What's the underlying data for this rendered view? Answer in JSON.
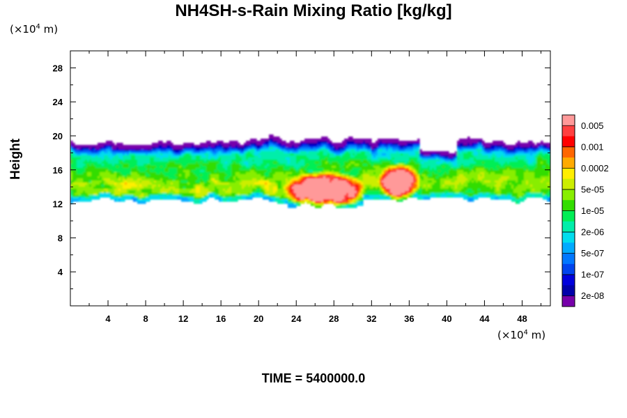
{
  "chart_data": {
    "type": "heatmap",
    "title": "NH4SH-s-Rain Mixing Ratio [kg/kg]",
    "xlabel": "",
    "ylabel": "Height",
    "x_unit": "(×10⁴ m)",
    "y_unit": "(×10⁴ m)",
    "xlim": [
      0,
      51
    ],
    "ylim": [
      0,
      30
    ],
    "xticks": [
      4,
      8,
      12,
      16,
      20,
      24,
      28,
      32,
      36,
      40,
      44,
      48
    ],
    "yticks": [
      4,
      8,
      12,
      16,
      20,
      24,
      28
    ],
    "colorbar": {
      "labels": [
        "0.005",
        "0.001",
        "0.0002",
        "5e-05",
        "1e-05",
        "2e-06",
        "5e-07",
        "1e-07",
        "2e-08"
      ],
      "colors": [
        "#ff9999",
        "#ff4040",
        "#ff0000",
        "#ff6600",
        "#ffaa00",
        "#ffee00",
        "#ccee00",
        "#88ee00",
        "#33dd00",
        "#00ee55",
        "#00eeaa",
        "#00ddee",
        "#00aaff",
        "#0077ff",
        "#0044ee",
        "#0000dd",
        "#0000aa",
        "#7700aa"
      ]
    },
    "cloud_band": {
      "base_height": 12.5,
      "top_height": 19.5,
      "peak_regions": [
        {
          "x_range": [
            23,
            31
          ],
          "y_range": [
            12,
            16
          ]
        },
        {
          "x_range": [
            33,
            37
          ],
          "y_range": [
            13,
            17
          ]
        }
      ]
    },
    "time_label": "TIME = 5400000.0"
  }
}
